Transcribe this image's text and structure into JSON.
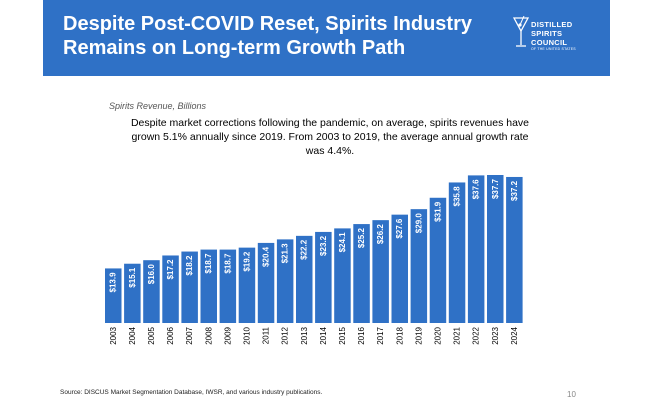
{
  "header": {
    "title_line1": "Despite Post-COVID Reset, Spirits Industry",
    "title_line2": "Remains on Long-term Growth Path"
  },
  "logo": {
    "line1": "DISTILLED",
    "line2": "SPIRITS",
    "line3": "COUNCIL",
    "line4": "OF THE UNITED STATES",
    "icon": "cocktail-glass-icon"
  },
  "footer": {
    "source": "Source: DISCUS Market Segmentation Database, IWSR, and various industry publications.",
    "page_number": "10"
  },
  "colors": {
    "header_bg": "#2f71c6",
    "bar": "#2f71c6",
    "bar_label": "#ffffff"
  },
  "chart_data": {
    "type": "bar",
    "title": "Spirits Revenue, Billions",
    "annotation": "Despite market corrections following the pandemic, on average, spirits revenues have grown 5.1% annually since 2019. From 2003 to 2019, the average annual growth rate was 4.4%.",
    "xlabel": "",
    "ylabel": "",
    "ylim": [
      0,
      40
    ],
    "grid": false,
    "categories": [
      "2003",
      "2004",
      "2005",
      "2006",
      "2007",
      "2008",
      "2009",
      "2010",
      "2011",
      "2012",
      "2013",
      "2014",
      "2015",
      "2016",
      "2017",
      "2018",
      "2019",
      "2020",
      "2021",
      "2022",
      "2023",
      "2024"
    ],
    "values": [
      13.9,
      15.1,
      16.0,
      17.2,
      18.2,
      18.7,
      18.7,
      19.2,
      20.4,
      21.3,
      22.2,
      23.2,
      24.1,
      25.2,
      26.2,
      27.6,
      29.0,
      31.9,
      35.8,
      37.6,
      37.7,
      37.2
    ],
    "data_labels": [
      "$13.9",
      "$15.1",
      "$16.0",
      "$17.2",
      "$18.2",
      "$18.7",
      "$18.7",
      "$19.2",
      "$20.4",
      "$21.3",
      "$22.2",
      "$23.2",
      "$24.1",
      "$25.2",
      "$26.2",
      "$27.6",
      "$29.0",
      "$31.9",
      "$35.8",
      "$37.6",
      "$37.7",
      "$37.2"
    ]
  }
}
